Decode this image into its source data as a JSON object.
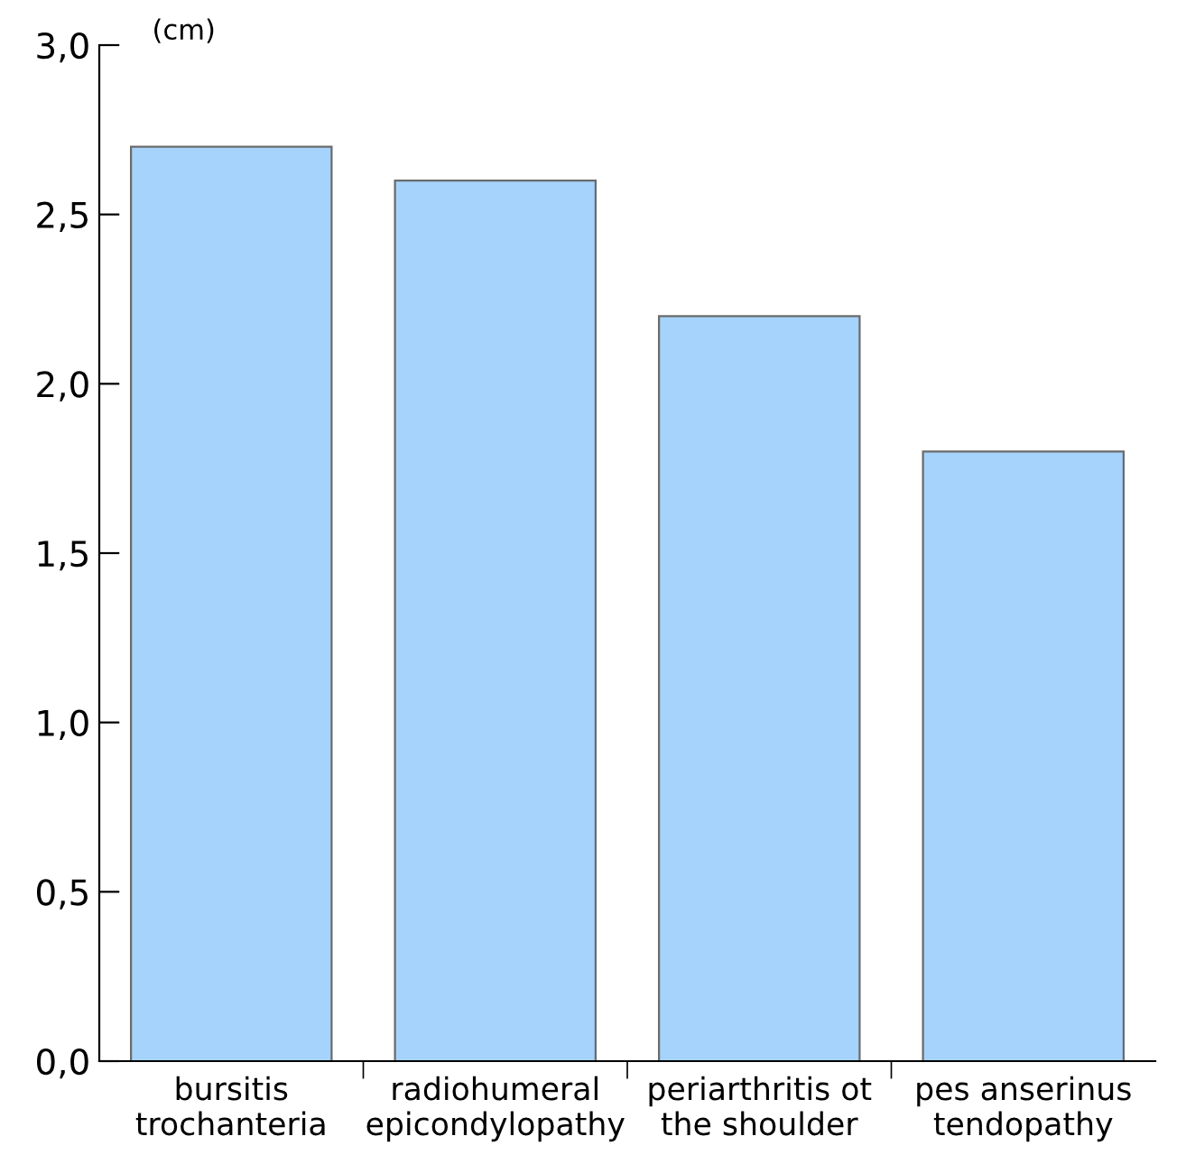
{
  "chart_data": {
    "type": "bar",
    "ylabel": "(cm)",
    "categories": [
      "bursitis\ntrochanteria",
      "radiohumeral\nepicondylopathy",
      "periarthritis ot\nthe shoulder",
      "pes anserinus\ntendopathy"
    ],
    "values": [
      2.7,
      2.6,
      2.2,
      1.8
    ],
    "color": "#a6d3fb",
    "ylim": [
      0,
      3
    ],
    "yticks": [
      {
        "value": 0,
        "label": "0,0"
      },
      {
        "value": 0.5,
        "label": "0,5"
      },
      {
        "value": 1,
        "label": "1,0"
      },
      {
        "value": 1.5,
        "label": "1,5"
      },
      {
        "value": 2,
        "label": "2,0"
      },
      {
        "value": 2.5,
        "label": "2,5"
      },
      {
        "value": 3,
        "label": "3,0"
      }
    ],
    "grid": false,
    "legend": false
  }
}
